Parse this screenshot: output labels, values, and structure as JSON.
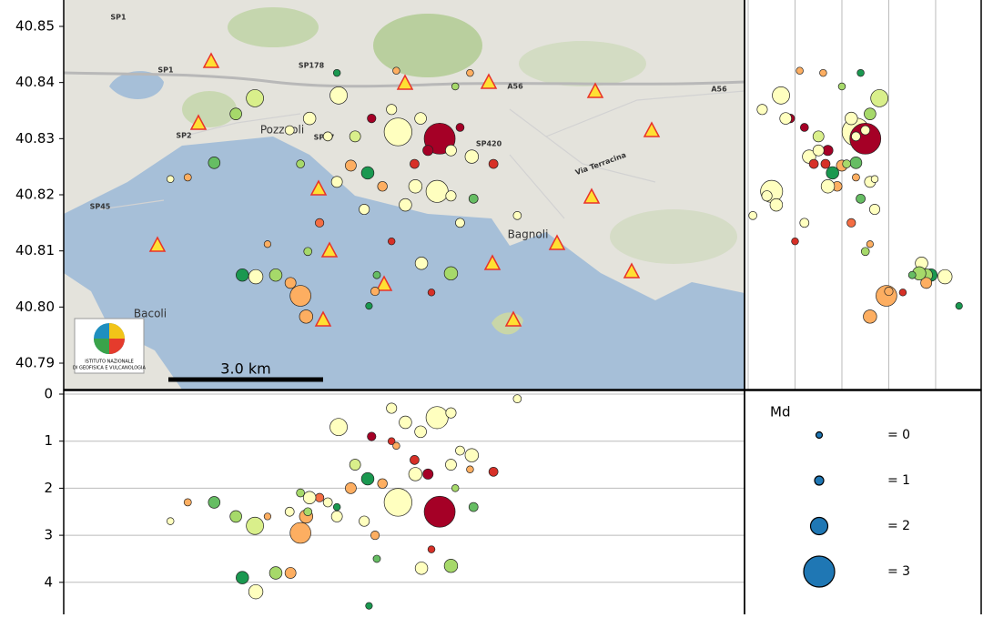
{
  "chart_data": {
    "type": "scatter",
    "xlim": [
      14.05,
      14.207
    ],
    "ylim": [
      40.7853,
      40.8547
    ],
    "yticks": [
      {
        "value": 40.79,
        "label": "40.79"
      },
      {
        "value": 40.8,
        "label": "40.80"
      },
      40.81,
      40.82,
      40.83,
      40.84,
      40.85
    ],
    "depth_lim": [
      0,
      4.7
    ],
    "depth_ticks": [
      0,
      1,
      2,
      3,
      4
    ],
    "grid": true,
    "scale_bar": "3.0 km",
    "legend": {
      "title": "Md",
      "values": [
        0,
        1,
        2,
        3
      ],
      "labels": [
        "= 0",
        "= 1",
        "= 2",
        "= 3"
      ],
      "color": "#1f77b4"
    },
    "map_labels": [
      "Pozzuoli",
      "Bagnoli",
      "Bacoli",
      "SP1",
      "SP1",
      "SP178",
      "A56",
      "A56",
      "SP420",
      "SP2",
      "SP45",
      "Via Terracina",
      "SP47"
    ],
    "logo": [
      "ISTITUTO NAZIONALE",
      "DI GEOFISICA E VULCANOLOGIA"
    ],
    "events": {
      "lon": [
        14.1271,
        14.1367,
        14.1361,
        14.1134,
        14.0941,
        14.0897,
        14.0847,
        14.0912,
        14.0943,
        14.0989,
        14.1023,
        14.1046,
        14.1059,
        14.1325,
        14.1393,
        14.109,
        14.097,
        14.1063,
        14.1218,
        14.1491,
        14.1441,
        14.1162,
        14.1201,
        14.113,
        14.1235,
        14.1309,
        14.134,
        14.1414,
        14.1256,
        14.1067,
        14.1046,
        14.0786,
        14.0746,
        14.1546,
        14.1414,
        14.1193,
        14.1288,
        14.1445,
        14.1222,
        14.1204,
        14.1256,
        14.1348,
        14.1437,
        14.1267,
        14.113,
        14.1403,
        14.1172,
        14.1109,
        14.1021,
        14.121,
        14.1323,
        14.1393,
        14.1311,
        14.1393
      ],
      "lat": [
        40.8312,
        40.83,
        40.8206,
        40.8377,
        40.8372,
        40.8344,
        40.8257,
        40.8057,
        40.8054,
        40.8057,
        40.8043,
        40.802,
        40.7983,
        40.8078,
        40.806,
        40.815,
        40.8112,
        40.8099,
        40.8028,
        40.8255,
        40.8268,
        40.8252,
        40.8239,
        40.8223,
        40.8215,
        40.8255,
        40.8279,
        40.832,
        40.8352,
        40.8336,
        40.8255,
        40.8231,
        40.8228,
        40.8163,
        40.815,
        40.8174,
        40.8182,
        40.8193,
        40.8057,
        40.8002,
        40.8117,
        40.8026,
        40.8417,
        40.8421,
        40.8417,
        40.8393,
        40.8304,
        40.8304,
        40.8315,
        40.8336,
        40.8336,
        40.8279,
        40.8215,
        40.8198
      ],
      "depth": [
        2.3,
        2.5,
        0.5,
        0.7,
        2.8,
        2.6,
        2.3,
        3.9,
        4.2,
        3.8,
        3.8,
        2.95,
        2.6,
        3.7,
        3.65,
        2.2,
        2.6,
        2.5,
        3.0,
        1.65,
        1.3,
        2.0,
        1.8,
        2.6,
        1.9,
        1.4,
        1.7,
        1.2,
        0.3,
        2.2,
        2.1,
        2.3,
        2.7,
        0.1,
        1.2,
        2.7,
        0.6,
        2.4,
        3.5,
        4.5,
        1.0,
        3.3,
        1.6,
        1.1,
        2.4,
        2.0,
        1.5,
        2.3,
        2.5,
        0.9,
        0.8,
        1.5,
        1.7,
        0.4
      ],
      "md": [
        2.8,
        3.0,
        2.4,
        2.0,
        2.0,
        1.4,
        1.4,
        1.5,
        1.7,
        1.5,
        1.3,
        2.3,
        1.6,
        1.5,
        1.6,
        0.9,
        0.4,
        0.8,
        0.9,
        1.0,
        1.6,
        1.3,
        1.5,
        1.3,
        1.1,
        1.0,
        1.2,
        0.8,
        1.2,
        1.5,
        0.8,
        0.6,
        0.5,
        0.8,
        1.0,
        1.2,
        1.5,
        1.0,
        0.6,
        0.4,
        0.5,
        0.5,
        0.5,
        0.5,
        0.5,
        0.5,
        1.3,
        1.0,
        1.0,
        0.9,
        1.4,
        1.3,
        1.6,
        1.2
      ],
      "colors": [
        "#ffffbf",
        "#a50026",
        "#ffffbf",
        "#ffffbf",
        "#d9ef8b",
        "#a6d96a",
        "#66bd63",
        "#1a9850",
        "#ffffbf",
        "#a6d96a",
        "#fdae61",
        "#fdae61",
        "#fdae61",
        "#ffffbf",
        "#a6d96a",
        "#f46d43",
        "#fdae61",
        "#a6d96a",
        "#fdae61",
        "#d73027",
        "#ffffbf",
        "#fdae61",
        "#1a9850",
        "#ffffbf",
        "#fdae61",
        "#d73027",
        "#a50026",
        "#a50026",
        "#ffffbf",
        "#ffffbf",
        "#a6d96a",
        "#fdae61",
        "#ffffbf",
        "#ffffbf",
        "#ffffbf",
        "#ffffbf",
        "#ffffbf",
        "#66bd63",
        "#66bd63",
        "#1a9850",
        "#d73027",
        "#d73027",
        "#fdae61",
        "#fdae61",
        "#1a9850",
        "#a6d96a",
        "#d9ef8b",
        "#ffffbf",
        "#ffffbf",
        "#a50026",
        "#ffffbf",
        "#ffffbf",
        "#ffffbf",
        "#ffffbf"
      ]
    }
  }
}
